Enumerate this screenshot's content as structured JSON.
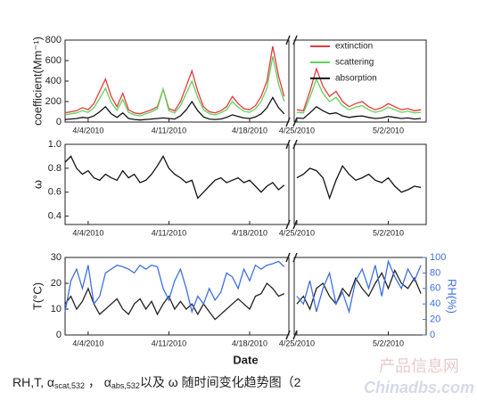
{
  "chart_data": [
    {
      "type": "line",
      "y_label": "coefficient(Mm⁻¹)",
      "legend": "upper right",
      "x": [
        2,
        2.5,
        3,
        3.5,
        4,
        4.5,
        5,
        5.5,
        6,
        6.5,
        7,
        7.5,
        8,
        8.5,
        9,
        9.5,
        10,
        10.5,
        11,
        11.5,
        12,
        12.5,
        13,
        13.5,
        14,
        14.5,
        15,
        15.5,
        16,
        16.5,
        17,
        17.5,
        18,
        18.5,
        19,
        19.5,
        20,
        20.5,
        21,
        25,
        25.5,
        26,
        26.5,
        27,
        27.5,
        28,
        28.5,
        29,
        29.5,
        30,
        30.5,
        31,
        31.5,
        32,
        32.5,
        33,
        33.5,
        34,
        34.5
      ],
      "xlim": [
        2,
        34.9
      ],
      "xbreak": [
        21.4,
        24.8
      ],
      "xticks": [
        {
          "value": 4,
          "label": "4/4/2010"
        },
        {
          "value": 11,
          "label": "4/11/2010"
        },
        {
          "value": 18,
          "label": "4/18/2010"
        },
        {
          "value": 25,
          "label": "4/25/2010"
        },
        {
          "value": 32,
          "label": "5/2/2010"
        }
      ],
      "ylim": [
        0,
        800
      ],
      "yticks": [
        0,
        200,
        400,
        600,
        800
      ],
      "series": [
        {
          "name": "extinction",
          "color": "#e8383d",
          "values": [
            90,
            100,
            110,
            140,
            120,
            180,
            300,
            420,
            250,
            150,
            280,
            120,
            90,
            80,
            100,
            120,
            150,
            320,
            130,
            110,
            200,
            350,
            500,
            300,
            150,
            100,
            90,
            110,
            150,
            250,
            180,
            130,
            120,
            160,
            250,
            400,
            740,
            450,
            250,
            120,
            110,
            300,
            520,
            350,
            250,
            300,
            200,
            150,
            180,
            200,
            150,
            120,
            140,
            180,
            150,
            120,
            130,
            110,
            120
          ]
        },
        {
          "name": "scattering",
          "color": "#5fd35a",
          "values": [
            70,
            80,
            90,
            110,
            95,
            140,
            230,
            330,
            190,
            115,
            220,
            95,
            70,
            60,
            80,
            100,
            130,
            320,
            110,
            90,
            160,
            280,
            400,
            240,
            120,
            80,
            70,
            90,
            120,
            200,
            145,
            105,
            95,
            130,
            200,
            330,
            640,
            370,
            200,
            95,
            90,
            240,
            420,
            280,
            200,
            240,
            160,
            120,
            145,
            160,
            120,
            95,
            110,
            145,
            120,
            95,
            105,
            90,
            95
          ]
        },
        {
          "name": "absorption",
          "color": "#111111",
          "values": [
            25,
            30,
            35,
            45,
            40,
            60,
            100,
            150,
            80,
            45,
            90,
            35,
            25,
            20,
            25,
            30,
            35,
            40,
            35,
            30,
            60,
            120,
            200,
            110,
            50,
            30,
            25,
            30,
            45,
            70,
            55,
            40,
            35,
            50,
            80,
            140,
            240,
            140,
            80,
            40,
            35,
            90,
            150,
            110,
            80,
            90,
            60,
            45,
            55,
            60,
            45,
            35,
            40,
            55,
            45,
            35,
            40,
            30,
            35
          ]
        }
      ]
    },
    {
      "type": "line",
      "y_label": "ω",
      "x": [
        2,
        2.5,
        3,
        3.5,
        4,
        4.5,
        5,
        5.5,
        6,
        6.5,
        7,
        7.5,
        8,
        8.5,
        9,
        9.5,
        10,
        10.5,
        11,
        11.5,
        12,
        12.5,
        13,
        13.5,
        14,
        14.5,
        15,
        15.5,
        16,
        16.5,
        17,
        17.5,
        18,
        18.5,
        19,
        19.5,
        20,
        20.5,
        21,
        25,
        25.5,
        26,
        26.5,
        27,
        27.5,
        28,
        28.5,
        29,
        29.5,
        30,
        30.5,
        31,
        31.5,
        32,
        32.5,
        33,
        33.5,
        34,
        34.5
      ],
      "xlim": [
        2,
        34.9
      ],
      "xbreak": [
        21.4,
        24.8
      ],
      "xticks": [
        {
          "value": 4,
          "label": "4/4/2010"
        },
        {
          "value": 11,
          "label": "4/11/2010"
        },
        {
          "value": 18,
          "label": "4/18/2010"
        },
        {
          "value": 25,
          "label": "4/25/2010"
        },
        {
          "value": 32,
          "label": "5/2/2010"
        }
      ],
      "ylim": [
        0.33,
        1.0
      ],
      "yticks": [
        0.4,
        0.6,
        0.8,
        {
          "value": 1,
          "label": "1.0"
        }
      ],
      "series": [
        {
          "color": "#111111",
          "values": [
            0.85,
            0.9,
            0.8,
            0.75,
            0.78,
            0.72,
            0.7,
            0.75,
            0.72,
            0.7,
            0.78,
            0.72,
            0.75,
            0.68,
            0.7,
            0.75,
            0.82,
            0.9,
            0.8,
            0.75,
            0.72,
            0.68,
            0.7,
            0.55,
            0.6,
            0.65,
            0.7,
            0.72,
            0.68,
            0.7,
            0.72,
            0.68,
            0.7,
            0.65,
            0.6,
            0.65,
            0.68,
            0.62,
            0.66,
            0.72,
            0.75,
            0.8,
            0.78,
            0.72,
            0.55,
            0.7,
            0.82,
            0.75,
            0.7,
            0.72,
            0.75,
            0.7,
            0.68,
            0.72,
            0.65,
            0.6,
            0.62,
            0.65,
            0.64
          ]
        }
      ]
    },
    {
      "type": "line",
      "y_label": "T(°C)",
      "y2_label": "RH(%)",
      "x_label": "Date",
      "x": [
        2,
        2.5,
        3,
        3.5,
        4,
        4.5,
        5,
        5.5,
        6,
        6.5,
        7,
        7.5,
        8,
        8.5,
        9,
        9.5,
        10,
        10.5,
        11,
        11.5,
        12,
        12.5,
        13,
        13.5,
        14,
        14.5,
        15,
        15.5,
        16,
        16.5,
        17,
        17.5,
        18,
        18.5,
        19,
        19.5,
        20,
        20.5,
        21,
        25,
        25.5,
        26,
        26.5,
        27,
        27.5,
        28,
        28.5,
        29,
        29.5,
        30,
        30.5,
        31,
        31.5,
        32,
        32.5,
        33,
        33.5,
        34,
        34.5
      ],
      "xlim": [
        2,
        34.9
      ],
      "xbreak": [
        21.4,
        24.8
      ],
      "xticks": [
        {
          "value": 4,
          "label": "4/4/2010"
        },
        {
          "value": 11,
          "label": "4/11/2010"
        },
        {
          "value": 18,
          "label": "4/18/2010"
        },
        {
          "value": 25,
          "label": "4/25/2010"
        },
        {
          "value": 32,
          "label": "5/2/2010"
        }
      ],
      "ylim": [
        0,
        30
      ],
      "yticks": [
        0,
        10,
        20,
        30
      ],
      "y2lim": [
        0,
        100
      ],
      "y2ticks": [
        0,
        20,
        40,
        60,
        80,
        100
      ],
      "series": [
        {
          "color": "#222222",
          "values": [
            12,
            15,
            10,
            13,
            18,
            12,
            8,
            10,
            12,
            14,
            10,
            8,
            12,
            14,
            10,
            13,
            8,
            12,
            15,
            10,
            13,
            10,
            12,
            8,
            12,
            9,
            6,
            8,
            10,
            12,
            14,
            12,
            10,
            15,
            16,
            20,
            18,
            15,
            16,
            12,
            15,
            10,
            18,
            20,
            15,
            12,
            18,
            15,
            22,
            18,
            15,
            20,
            24,
            18,
            25,
            20,
            18,
            22,
            16
          ]
        },
        {
          "color": "#3f6fe0",
          "axis": "y2",
          "values": [
            30,
            70,
            85,
            60,
            90,
            40,
            50,
            80,
            85,
            90,
            88,
            85,
            80,
            90,
            85,
            90,
            88,
            60,
            45,
            70,
            85,
            60,
            30,
            50,
            40,
            60,
            45,
            55,
            80,
            75,
            60,
            85,
            70,
            90,
            85,
            90,
            92,
            95,
            88,
            50,
            40,
            70,
            30,
            60,
            80,
            40,
            55,
            30,
            70,
            85,
            60,
            90,
            50,
            95,
            75,
            60,
            85,
            70,
            90
          ]
        }
      ]
    }
  ],
  "caption": {
    "a": "RH,T, α",
    "b": "scat,532",
    "c": " ， α",
    "d": "abs,532",
    "e": "以及 ω 随时间变化趋势图（2"
  },
  "watermark": {
    "cn": "产品信息网",
    "en": "Chinadbs.com"
  }
}
